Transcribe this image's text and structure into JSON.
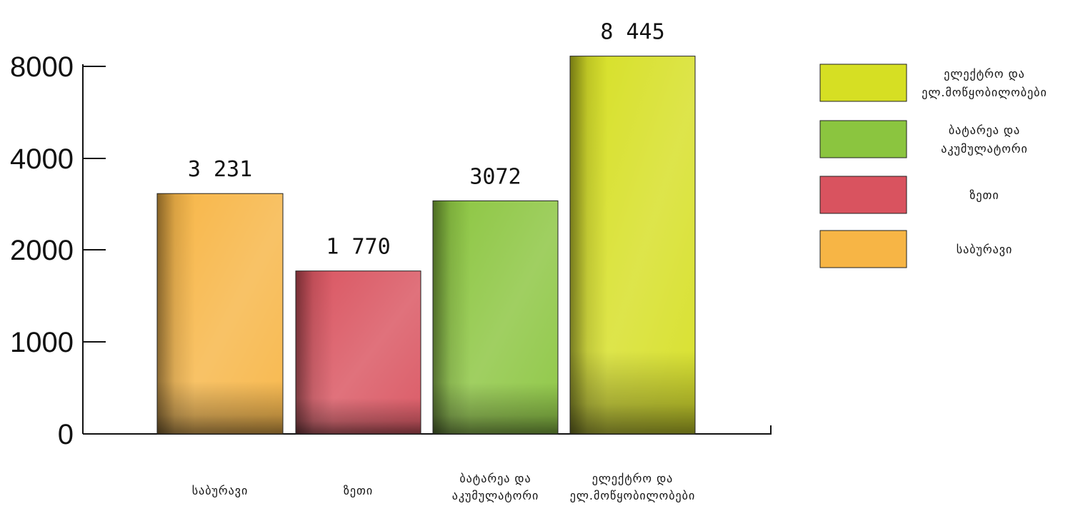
{
  "chart_data": {
    "type": "bar",
    "categories": [
      "საბურავი",
      "ზეთი",
      "ბატარეა და აკუმულატორი",
      "ელექტრო და ელ.მოწყობილობები"
    ],
    "category_lines": [
      [
        "საბურავი"
      ],
      [
        "ზეთი"
      ],
      [
        "ბატარეა და",
        "აკუმულატორი"
      ],
      [
        "ელექტრო და",
        "ელ.მოწყობილობები"
      ]
    ],
    "values": [
      3231,
      1770,
      3072,
      8445
    ],
    "value_labels": [
      "3 231",
      "1 770",
      "3072",
      "8 445"
    ],
    "colors": [
      "#f7b545",
      "#d9535f",
      "#8bc53f",
      "#d6df23"
    ],
    "yticks": [
      0,
      1000,
      2000,
      4000,
      8000
    ],
    "ytick_labels": [
      "0",
      "1000",
      "2000",
      "4000",
      "8000"
    ],
    "scale": "non-linear (ticks at 0, 1000, 2000, 4000, 8000 equally spaced)",
    "legend": {
      "position": "right",
      "items": [
        {
          "lines": [
            "ელექტრო და",
            "ელ.მოწყობილობები"
          ],
          "color": "#d6df23"
        },
        {
          "lines": [
            "ბატარეა და",
            "აკუმულატორი"
          ],
          "color": "#8bc53f"
        },
        {
          "lines": [
            "ზეთი"
          ],
          "color": "#d9535f"
        },
        {
          "lines": [
            "საბურავი"
          ],
          "color": "#f7b545"
        }
      ]
    },
    "grid": false,
    "title": "",
    "xlabel": "",
    "ylabel": ""
  }
}
